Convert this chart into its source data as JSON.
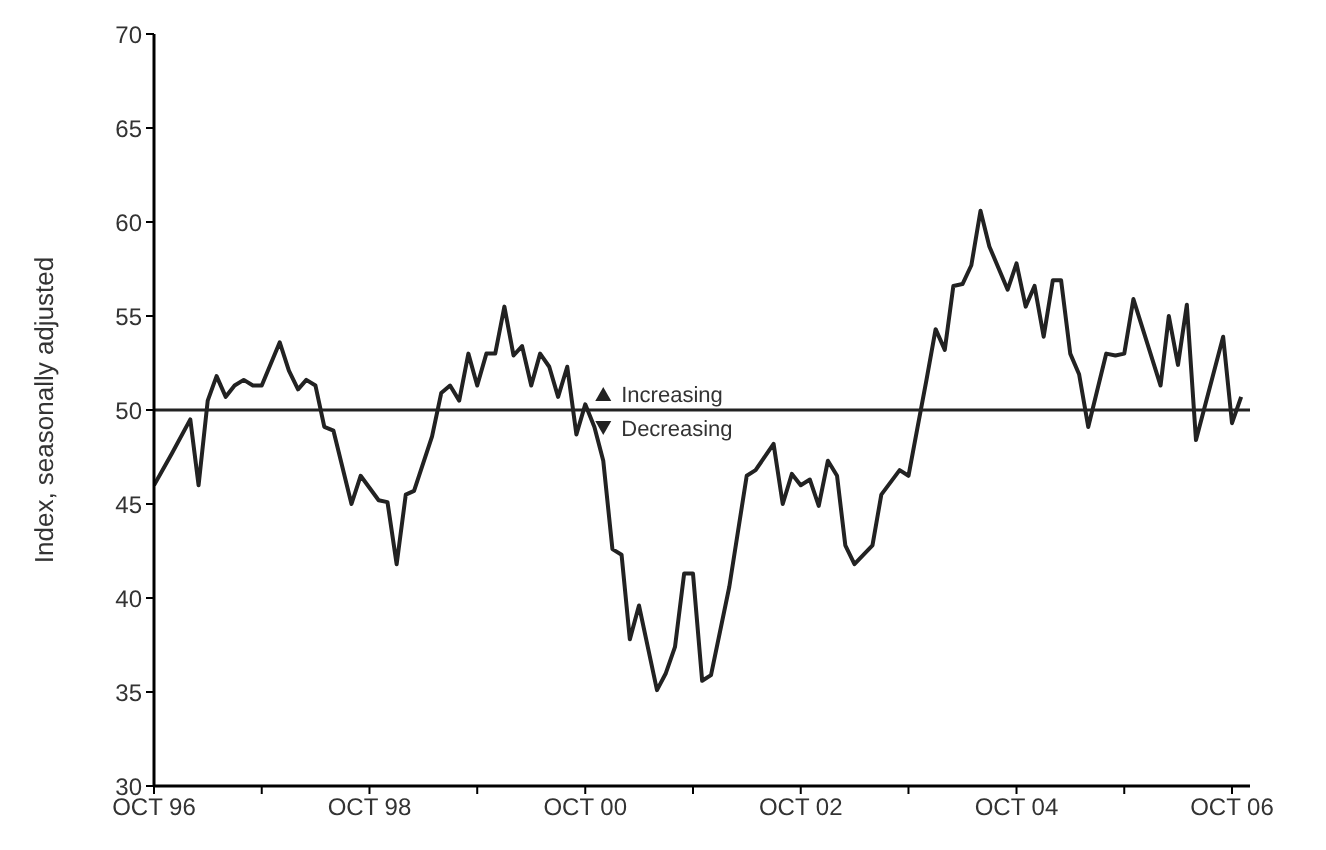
{
  "chart_data": {
    "type": "line",
    "ylabel": "Index, seasonally adjusted",
    "x": [
      "1996-10",
      "1996-12",
      "1997-02",
      "1997-03",
      "1997-04",
      "1997-05",
      "1997-06",
      "1997-07",
      "1997-08",
      "1997-09",
      "1997-10",
      "1997-12",
      "1998-01",
      "1998-02",
      "1998-03",
      "1998-04",
      "1998-05",
      "1998-06",
      "1998-08",
      "1998-09",
      "1998-11",
      "1998-12",
      "1999-01",
      "1999-02",
      "1999-03",
      "1999-05",
      "1999-06",
      "1999-07",
      "1999-08",
      "1999-09",
      "1999-10",
      "1999-11",
      "1999-12",
      "2000-01",
      "2000-02",
      "2000-03",
      "2000-04",
      "2000-05",
      "2000-06",
      "2000-07",
      "2000-08",
      "2000-09",
      "2000-10",
      "2000-11",
      "2000-12",
      "2001-01",
      "2001-02",
      "2001-03",
      "2001-04",
      "2001-06",
      "2001-07",
      "2001-08",
      "2001-09",
      "2001-10",
      "2001-11",
      "2001-12",
      "2002-02",
      "2002-04",
      "2002-05",
      "2002-07",
      "2002-08",
      "2002-09",
      "2002-10",
      "2002-11",
      "2002-12",
      "2003-01",
      "2003-02",
      "2003-03",
      "2003-04",
      "2003-06",
      "2003-07",
      "2003-09",
      "2003-10",
      "2003-11",
      "2003-12",
      "2004-01",
      "2004-02",
      "2004-03",
      "2004-04",
      "2004-05",
      "2004-06",
      "2004-07",
      "2004-09",
      "2004-10",
      "2004-11",
      "2004-12",
      "2005-01",
      "2005-02",
      "2005-03",
      "2005-04",
      "2005-05",
      "2005-06",
      "2005-08",
      "2005-09",
      "2005-10",
      "2005-11",
      "2006-02",
      "2006-03",
      "2006-04",
      "2006-05",
      "2006-06",
      "2006-09",
      "2006-10",
      "2006-11"
    ],
    "series": [
      {
        "color": "#222222",
        "values": [
          46.0,
          47.7,
          49.5,
          46.0,
          50.5,
          51.8,
          50.7,
          51.3,
          51.6,
          51.3,
          51.3,
          53.6,
          52.1,
          51.1,
          51.6,
          51.3,
          49.1,
          48.9,
          45.0,
          46.5,
          45.2,
          45.1,
          41.8,
          45.5,
          45.7,
          48.6,
          50.9,
          51.3,
          50.5,
          53.0,
          51.3,
          53.0,
          53.0,
          55.5,
          52.9,
          53.4,
          51.3,
          53.0,
          52.3,
          50.7,
          52.3,
          48.7,
          50.3,
          49.1,
          47.3,
          42.6,
          42.3,
          37.8,
          39.6,
          35.1,
          36.0,
          37.4,
          41.3,
          41.3,
          35.6,
          35.9,
          40.6,
          46.5,
          46.8,
          48.2,
          45.0,
          46.6,
          46.0,
          46.3,
          44.9,
          47.3,
          46.5,
          42.8,
          41.8,
          42.8,
          45.5,
          46.8,
          46.5,
          49.1,
          51.6,
          54.3,
          53.2,
          56.6,
          56.7,
          57.7,
          60.6,
          58.7,
          56.4,
          57.8,
          55.5,
          56.6,
          53.9,
          56.9,
          56.9,
          53.0,
          51.9,
          49.1,
          53.0,
          52.9,
          53.0,
          55.9,
          51.3,
          55.0,
          52.4,
          55.6,
          48.4,
          53.9,
          49.3,
          50.7
        ]
      }
    ],
    "xlim": [
      "1996-10",
      "2006-12"
    ],
    "xticks": [
      {
        "value": "1996-10",
        "label": "OCT 96"
      },
      {
        "value": "1997-10",
        "label": null
      },
      {
        "value": "1998-10",
        "label": "OCT 98"
      },
      {
        "value": "1999-10",
        "label": null
      },
      {
        "value": "2000-10",
        "label": "OCT 00"
      },
      {
        "value": "2001-10",
        "label": null
      },
      {
        "value": "2002-10",
        "label": "OCT 02"
      },
      {
        "value": "2003-10",
        "label": null
      },
      {
        "value": "2004-10",
        "label": "OCT 04"
      },
      {
        "value": "2005-10",
        "label": null
      },
      {
        "value": "2006-10",
        "label": "OCT 06"
      }
    ],
    "ylim": [
      30,
      70
    ],
    "yticks": [
      30,
      35,
      40,
      45,
      50,
      55,
      60,
      65,
      70
    ],
    "ref_lines": [
      {
        "axis": "y",
        "value": 50,
        "color": "#222222"
      }
    ],
    "annotations": [
      {
        "text": "Increasing",
        "x": "2000-12",
        "y": 50
      },
      {
        "text": "Decreasing",
        "x": "2000-12",
        "y": 50
      }
    ],
    "grid": false,
    "legend": false,
    "marker": "none",
    "line_style": "solid"
  }
}
